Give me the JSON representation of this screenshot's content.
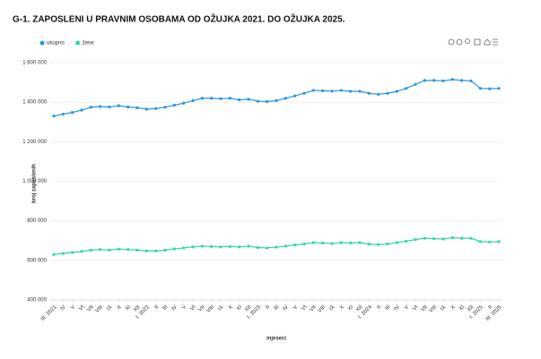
{
  "chart_data": {
    "type": "line",
    "title": "G-1. ZAPOSLENI U PRAVNIM OSOBAMA OD OŽUJKA 2021. DO OŽUJKA 2025.",
    "xlabel": "mjeseci",
    "ylabel": "broj zaposlenih",
    "categories": [
      "III. 2021",
      "IV",
      "V",
      "VI",
      "VII",
      "VIII",
      "IX",
      "X",
      "XI",
      "XII",
      "I. 2022",
      "II",
      "III",
      "IV",
      "V",
      "VI",
      "VII",
      "VIII",
      "IX",
      "X",
      "XI",
      "XII",
      "I. 2023",
      "II",
      "III",
      "IV",
      "V",
      "VI",
      "VII",
      "VIII",
      "IX",
      "X",
      "XI",
      "XII",
      "I. 2024",
      "II",
      "III",
      "IV",
      "V",
      "VI",
      "VII",
      "VIII",
      "IX",
      "X",
      "XI",
      "XII",
      "I. 2025",
      "II",
      "III. 2025"
    ],
    "series": [
      {
        "name": "ukupno",
        "color": "#2b95dc",
        "values": [
          1330000,
          1340000,
          1348000,
          1360000,
          1375000,
          1378000,
          1376000,
          1382000,
          1376000,
          1372000,
          1365000,
          1368000,
          1375000,
          1385000,
          1395000,
          1408000,
          1420000,
          1420000,
          1418000,
          1420000,
          1412000,
          1415000,
          1405000,
          1403000,
          1408000,
          1420000,
          1432000,
          1445000,
          1460000,
          1458000,
          1456000,
          1460000,
          1455000,
          1455000,
          1445000,
          1440000,
          1445000,
          1455000,
          1470000,
          1490000,
          1510000,
          1510000,
          1508000,
          1515000,
          1510000,
          1508000,
          1470000,
          1468000,
          1470000
        ]
      },
      {
        "name": "žene",
        "color": "#2ed8a2",
        "values": [
          630000,
          635000,
          640000,
          645000,
          652000,
          655000,
          652000,
          657000,
          655000,
          652000,
          648000,
          648000,
          652000,
          658000,
          663000,
          668000,
          672000,
          670000,
          668000,
          670000,
          668000,
          672000,
          665000,
          663000,
          667000,
          672000,
          678000,
          683000,
          690000,
          688000,
          685000,
          690000,
          688000,
          690000,
          682000,
          680000,
          683000,
          690000,
          697000,
          705000,
          712000,
          710000,
          708000,
          715000,
          712000,
          712000,
          695000,
          693000,
          695000
        ]
      }
    ],
    "ylim": [
      400000,
      1600000
    ],
    "yticks": [
      {
        "value": 400000,
        "label": "400 000"
      },
      {
        "value": 600000,
        "label": "600 000"
      },
      {
        "value": 800000,
        "label": "800 000"
      },
      {
        "value": 1000000,
        "label": "1 000 000"
      },
      {
        "value": 1200000,
        "label": "1 200 000"
      },
      {
        "value": 1400000,
        "label": "1 400 000"
      },
      {
        "value": 1600000,
        "label": "1 600 000"
      }
    ],
    "grid": true,
    "legend": "top-left"
  }
}
